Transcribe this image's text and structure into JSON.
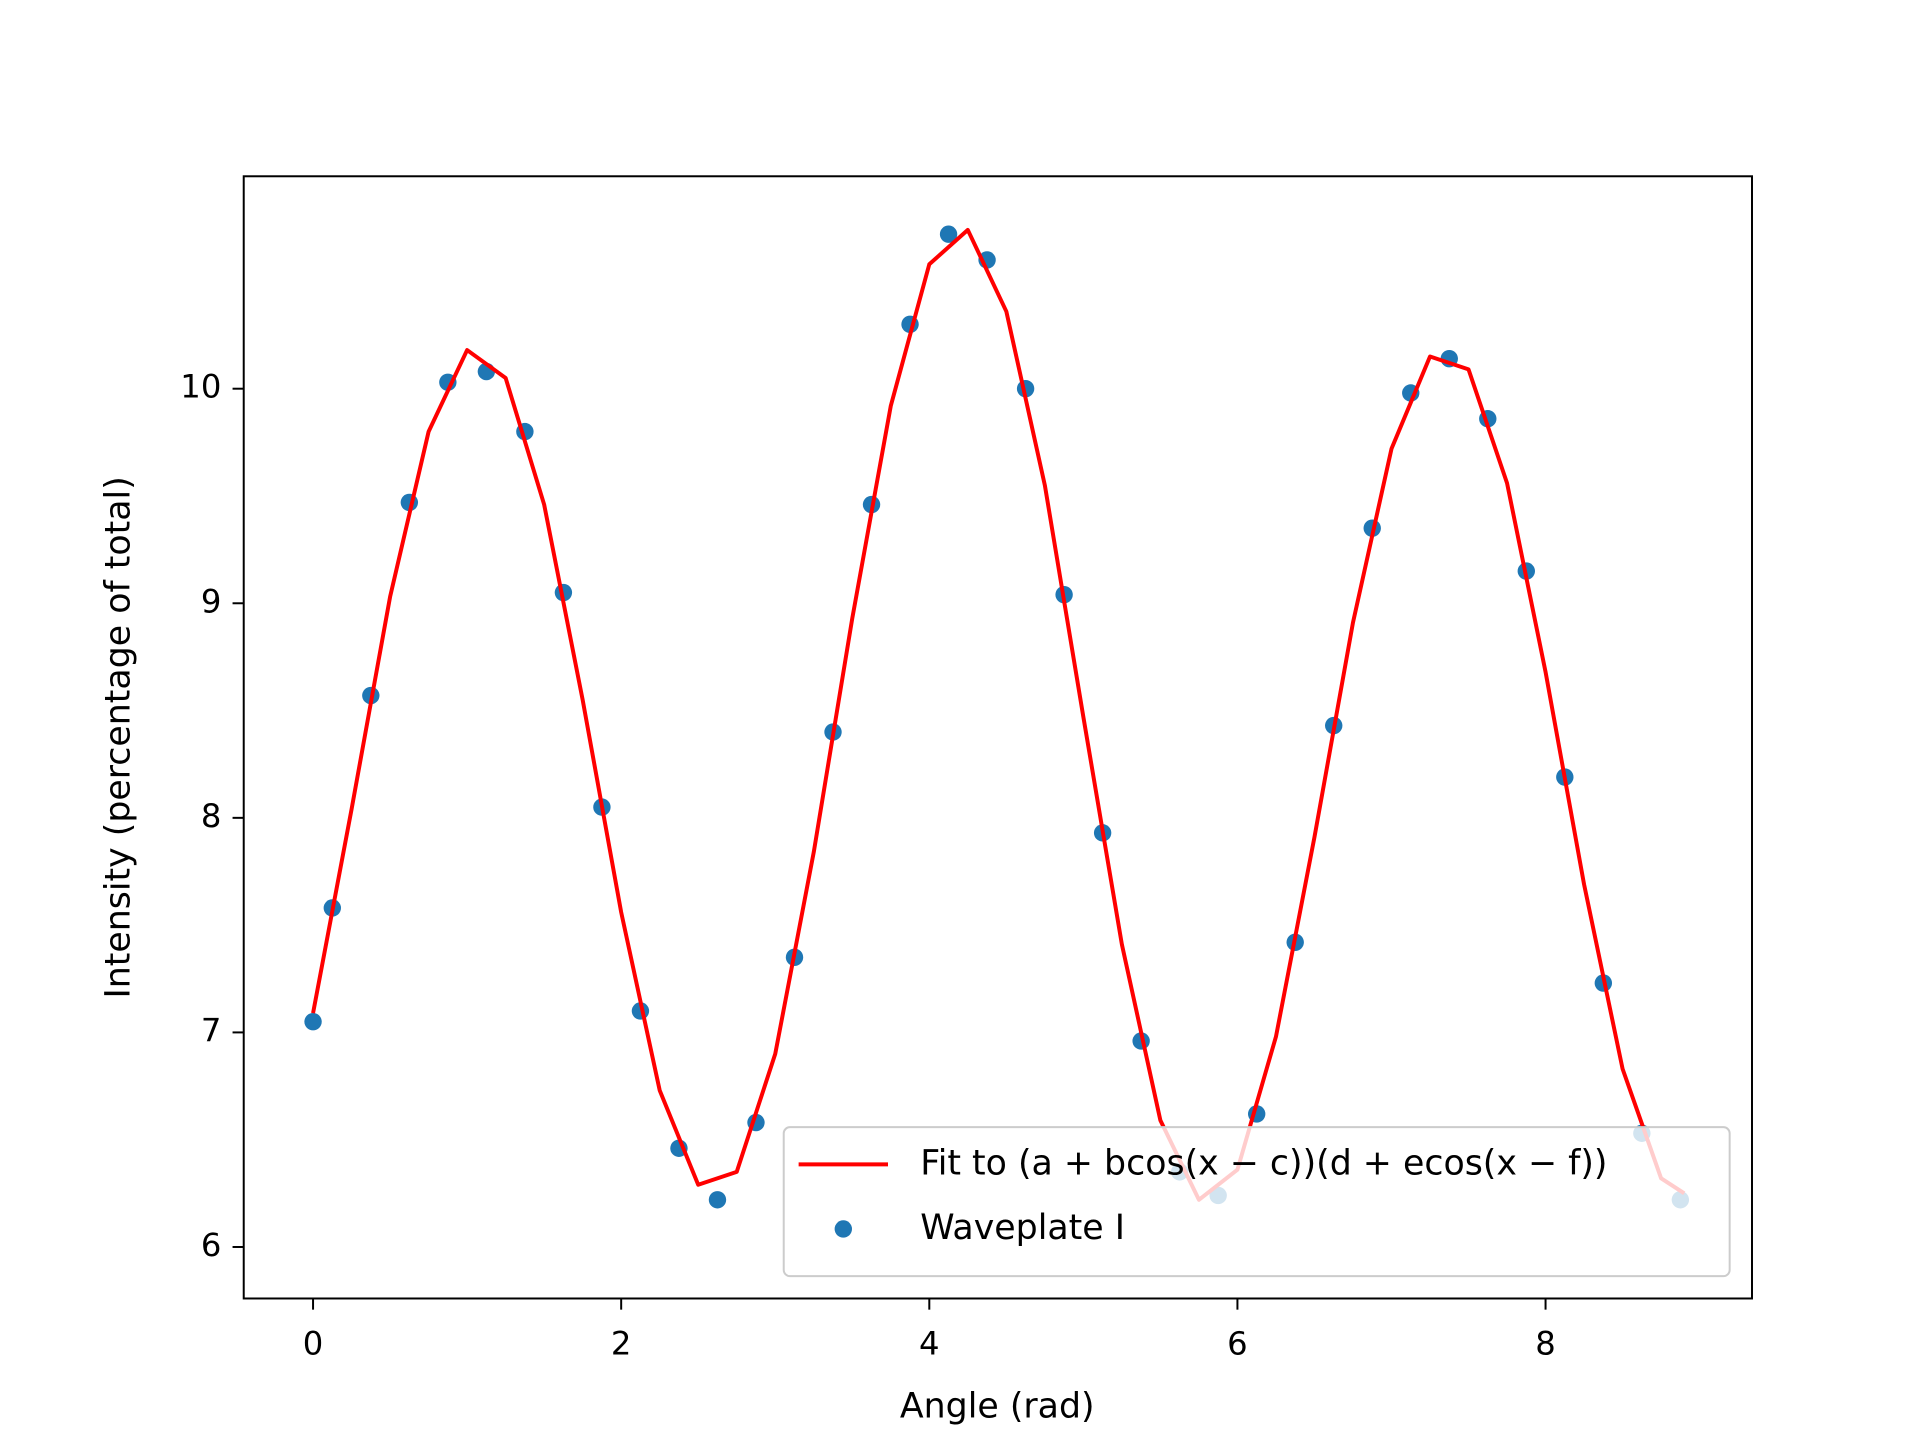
{
  "chart_data": {
    "type": "scatter",
    "xlabel": "Angle (rad)",
    "ylabel": "Intensity (percentage of total)",
    "xlim": [
      -0.45,
      9.34
    ],
    "ylim": [
      5.76,
      10.99
    ],
    "xticks": [
      0,
      2,
      4,
      6,
      8
    ],
    "yticks": [
      6,
      7,
      8,
      9,
      10
    ],
    "legend": "lower right",
    "series": [
      {
        "name": "Fit to (a + bcos(x − c))(d + ecos(x − f))",
        "type": "line",
        "color": "#ff0000",
        "x": [
          0,
          0.25,
          0.5,
          0.75,
          1.0,
          1.25,
          1.5,
          1.75,
          2.0,
          2.25,
          2.5,
          2.75,
          3.0,
          3.25,
          3.5,
          3.75,
          4.0,
          4.25,
          4.5,
          4.75,
          5.0,
          5.25,
          5.5,
          5.75,
          6.0,
          6.25,
          6.5,
          6.75,
          7.0,
          7.25,
          7.5,
          7.75,
          8.0,
          8.25,
          8.5,
          8.75,
          8.9
        ],
        "values": [
          7.09,
          8.04,
          9.03,
          9.8,
          10.18,
          10.05,
          9.46,
          8.55,
          7.56,
          6.73,
          6.29,
          6.35,
          6.9,
          7.84,
          8.93,
          9.92,
          10.58,
          10.74,
          10.36,
          9.55,
          8.47,
          7.41,
          6.59,
          6.22,
          6.36,
          6.98,
          7.91,
          8.91,
          9.72,
          10.15,
          10.09,
          9.56,
          8.68,
          7.69,
          6.83,
          6.32,
          6.25
        ]
      },
      {
        "name": "Waveplate I",
        "type": "scatter",
        "color": "#1f77b4",
        "x": [
          0,
          0.125,
          0.375,
          0.625,
          0.875,
          1.125,
          1.375,
          1.625,
          1.875,
          2.125,
          2.375,
          2.625,
          2.875,
          3.125,
          3.375,
          3.625,
          3.875,
          4.125,
          4.375,
          4.625,
          4.875,
          5.125,
          5.375,
          5.625,
          5.875,
          6.125,
          6.375,
          6.625,
          6.875,
          7.125,
          7.375,
          7.625,
          7.875,
          8.125,
          8.375,
          8.625,
          8.875
        ],
        "values": [
          7.05,
          7.58,
          8.57,
          9.47,
          10.03,
          10.08,
          9.8,
          9.05,
          8.05,
          7.1,
          6.46,
          6.22,
          6.58,
          7.35,
          8.4,
          9.46,
          10.3,
          10.72,
          10.6,
          10.0,
          9.04,
          7.93,
          6.96,
          6.35,
          6.24,
          6.62,
          7.42,
          8.43,
          9.35,
          9.98,
          10.14,
          9.86,
          9.15,
          8.19,
          7.23,
          6.53,
          6.22
        ]
      }
    ]
  }
}
